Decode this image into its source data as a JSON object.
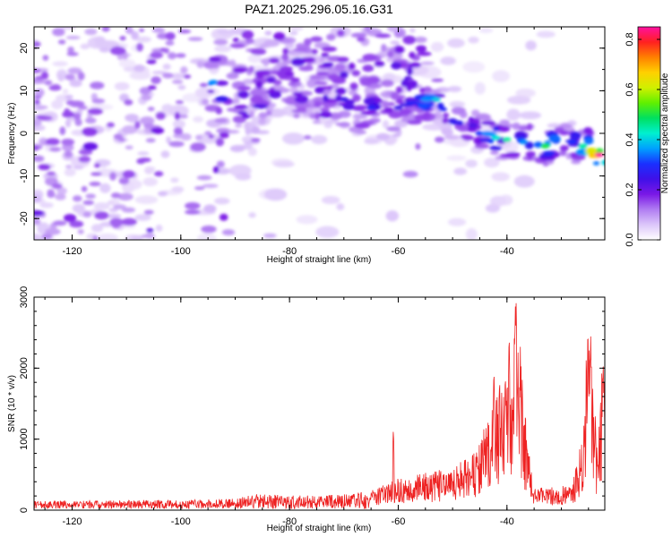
{
  "title": "PAZ1.2025.296.05.16.G31",
  "chart_data": [
    {
      "type": "heatmap",
      "title": "PAZ1.2025.296.05.16.G31",
      "xlabel": "Height of straight line (km)",
      "ylabel": "Frequency (Hz)",
      "xlim": [
        -127,
        -22
      ],
      "ylim": [
        -25,
        25
      ],
      "xticks": [
        -120,
        -100,
        -80,
        -60,
        -40
      ],
      "xtick_labels": [
        "-120",
        "-100",
        "-80",
        "-60",
        "-40"
      ],
      "yticks": [
        -20,
        -10,
        0,
        10,
        20
      ],
      "ytick_labels": [
        "-20",
        "-10",
        "0",
        "10",
        "20"
      ],
      "colorbar": {
        "label": "Normalized spectral amplitude",
        "range": [
          0,
          0.85
        ],
        "ticks": [
          0.0,
          0.2,
          0.4,
          0.6,
          0.8
        ],
        "tick_labels": [
          "0.0",
          "0.2",
          "0.4",
          "0.6",
          "0.8"
        ],
        "colors": [
          "#ffffff",
          "#dcc6fa",
          "#b07cf2",
          "#7a18e6",
          "#4010e8",
          "#1a30ff",
          "#00a0ff",
          "#00f0d0",
          "#00e060",
          "#60f000",
          "#d0f000",
          "#ffd000",
          "#ff8000",
          "#ff2020",
          "#ff10a0"
        ]
      },
      "main_trend": [
        {
          "x": -94,
          "y": 12,
          "a": 0.35
        },
        {
          "x": -88,
          "y": 4,
          "a": 0.2
        },
        {
          "x": -80,
          "y": 14,
          "a": 0.18
        },
        {
          "x": -70,
          "y": 8,
          "a": 0.25
        },
        {
          "x": -65,
          "y": 6,
          "a": 0.28
        },
        {
          "x": -60,
          "y": 6,
          "a": 0.25
        },
        {
          "x": -53,
          "y": 8,
          "a": 0.4
        },
        {
          "x": -50,
          "y": 3,
          "a": 0.25
        },
        {
          "x": -45,
          "y": 0,
          "a": 0.3
        },
        {
          "x": -42,
          "y": -1,
          "a": 0.42
        },
        {
          "x": -40,
          "y": -1.5,
          "a": 0.45
        },
        {
          "x": -37,
          "y": -2,
          "a": 0.35
        },
        {
          "x": -33,
          "y": -3,
          "a": 0.5
        },
        {
          "x": -28,
          "y": -2,
          "a": 0.3
        },
        {
          "x": -26,
          "y": -3,
          "a": 0.45
        },
        {
          "x": -23,
          "y": -5,
          "a": 0.85
        }
      ]
    },
    {
      "type": "line",
      "series": [
        {
          "name": "SNR",
          "color": "#ee2222"
        }
      ],
      "xlabel": "Height of straight line (km)",
      "ylabel": "SNR (10 * v/v)",
      "xlim": [
        -127,
        -22
      ],
      "ylim": [
        0,
        3000
      ],
      "xticks": [
        -120,
        -100,
        -80,
        -60,
        -40
      ],
      "xtick_labels": [
        "-120",
        "-100",
        "-80",
        "-60",
        "-40"
      ],
      "yticks": [
        0,
        1000,
        2000,
        3000
      ],
      "ytick_labels": [
        "0",
        "1000",
        "2000",
        "3000"
      ],
      "envelope": [
        {
          "x": -127,
          "y": 100
        },
        {
          "x": -100,
          "y": 110
        },
        {
          "x": -90,
          "y": 130
        },
        {
          "x": -86,
          "y": 190
        },
        {
          "x": -75,
          "y": 170
        },
        {
          "x": -65,
          "y": 220
        },
        {
          "x": -61,
          "y": 340
        },
        {
          "x": -55,
          "y": 420
        },
        {
          "x": -50,
          "y": 520
        },
        {
          "x": -46,
          "y": 650
        },
        {
          "x": -43,
          "y": 1100
        },
        {
          "x": -41,
          "y": 1500
        },
        {
          "x": -39,
          "y": 1700
        },
        {
          "x": -38,
          "y": 2800
        },
        {
          "x": -37,
          "y": 1300
        },
        {
          "x": -36,
          "y": 700
        },
        {
          "x": -35,
          "y": 250
        },
        {
          "x": -28,
          "y": 280
        },
        {
          "x": -26,
          "y": 900
        },
        {
          "x": -25,
          "y": 2300
        },
        {
          "x": -24,
          "y": 1500
        },
        {
          "x": -23.5,
          "y": 700
        },
        {
          "x": -22,
          "y": 2100
        }
      ],
      "peaks": [
        {
          "x": -60.9,
          "y": 1160
        },
        {
          "x": -38.3,
          "y": 2990
        },
        {
          "x": -39.6,
          "y": 2550
        },
        {
          "x": -42.4,
          "y": 2030
        },
        {
          "x": -40.3,
          "y": 1960
        },
        {
          "x": -24.6,
          "y": 2510
        },
        {
          "x": -22.3,
          "y": 2130
        }
      ]
    }
  ]
}
